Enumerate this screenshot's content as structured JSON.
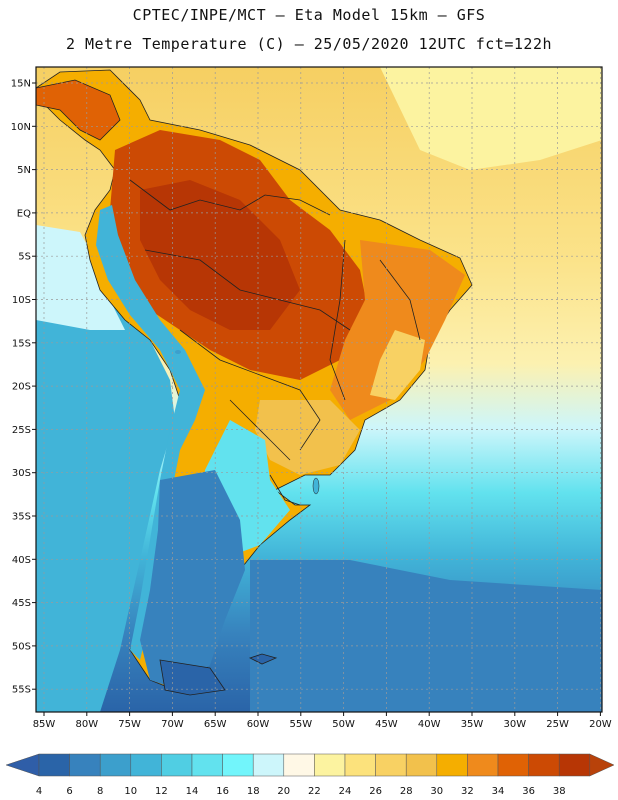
{
  "header": {
    "line1": "CPTEC/INPE/MCT –  Eta Model 15km – GFS",
    "line2": "2 Metre Temperature (C) – 25/05/2020 12UTC fct=122h"
  },
  "map": {
    "lat_labels": [
      "15N",
      "10N",
      "5N",
      "EQ",
      "5S",
      "10S",
      "15S",
      "20S",
      "25S",
      "30S",
      "35S",
      "40S",
      "45S",
      "50S",
      "55S"
    ],
    "lon_labels": [
      "85W",
      "80W",
      "75W",
      "70W",
      "65W",
      "60W",
      "55W",
      "50W",
      "45W",
      "40W",
      "35W",
      "30W",
      "25W",
      "20W"
    ]
  },
  "legend": {
    "values": [
      "4",
      "6",
      "8",
      "10",
      "12",
      "14",
      "16",
      "18",
      "20",
      "22",
      "24",
      "26",
      "28",
      "30",
      "32",
      "34",
      "36",
      "38"
    ],
    "colors": [
      "#2a64a8",
      "#3782bd",
      "#3c9fcc",
      "#41b4d8",
      "#50cee3",
      "#62e2ee",
      "#72f5fb",
      "#cdf6fb",
      "#fff8e6",
      "#fcf3a0",
      "#fce27c",
      "#f8d163",
      "#f2c14c",
      "#f5ae00",
      "#ef8a1c",
      "#e06205",
      "#cc4a04",
      "#b73605"
    ],
    "below_color": "#2f5ea8",
    "above_color": "#b8420a"
  }
}
